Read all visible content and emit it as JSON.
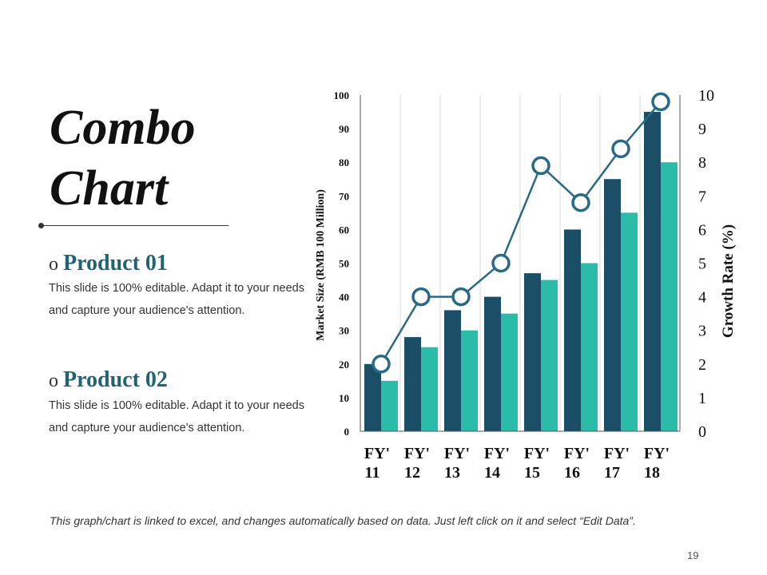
{
  "slide": {
    "title_line1": "Combo",
    "title_line2": "Chart",
    "products": [
      {
        "bullet": "o",
        "name": "Product 01",
        "desc": "This slide is 100% editable. Adapt it to your needs and capture your audience's attention."
      },
      {
        "bullet": "o",
        "name": "Product 02",
        "desc": "This slide is 100% editable. Adapt it to your needs and capture your audience's attention."
      }
    ],
    "footer": "This graph/chart is linked to excel, and changes automatically based on data. Just left click on it and select “Edit Data”.",
    "page_number": "19"
  },
  "colors": {
    "product1": "#1a4d66",
    "product2": "#2bbba9",
    "growth_line": "#2a6a85",
    "grid": "#d8d8d8"
  },
  "chart_data": {
    "type": "bar",
    "categories": [
      [
        "FY'",
        "11"
      ],
      [
        "FY'",
        "12"
      ],
      [
        "FY'",
        "13"
      ],
      [
        "FY'",
        "14"
      ],
      [
        "FY'",
        "15"
      ],
      [
        "FY'",
        "16"
      ],
      [
        "FY'",
        "17"
      ],
      [
        "FY'",
        "18"
      ]
    ],
    "series": [
      {
        "values": [
          20,
          28,
          36,
          40,
          47,
          60,
          75,
          95
        ]
      },
      {
        "values": [
          15,
          25,
          30,
          35,
          45,
          50,
          65,
          80
        ]
      }
    ],
    "line_series": {
      "type": "line",
      "axis": "right",
      "values": [
        2,
        4,
        4,
        5,
        7.9,
        6.8,
        8.4,
        9.8
      ]
    },
    "ylabel_left": "Market Size (RMB 100 Million)",
    "ylabel_right": "Growth Rate (%)",
    "ylim_left": [
      0,
      100
    ],
    "ylim_right": [
      0,
      10
    ],
    "yticks_left": [
      "0",
      "10",
      "20",
      "30",
      "40",
      "50",
      "60",
      "70",
      "80",
      "90",
      "100"
    ],
    "yticks_right": [
      "0",
      "1",
      "2",
      "3",
      "4",
      "5",
      "6",
      "7",
      "8",
      "9",
      "10"
    ],
    "grid": "vertical",
    "legend": "none"
  }
}
